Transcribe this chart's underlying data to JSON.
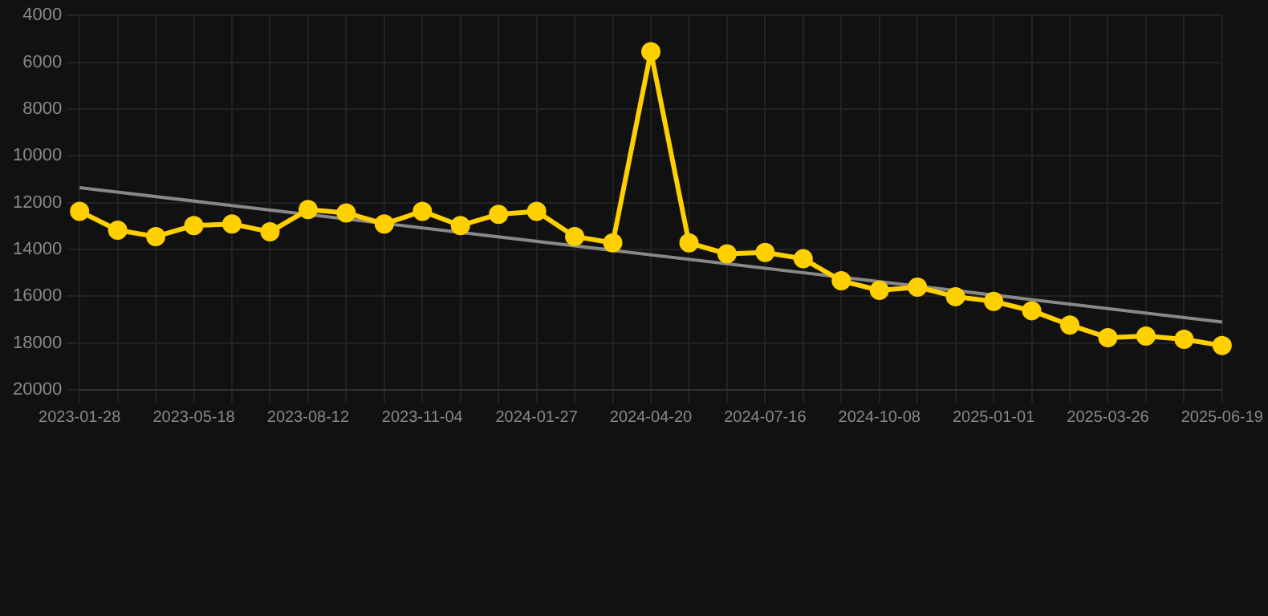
{
  "chart_data": {
    "type": "line",
    "categories": [
      "2023-01-28",
      null,
      null,
      "2023-05-18",
      null,
      null,
      "2023-08-12",
      null,
      null,
      "2023-11-04",
      null,
      null,
      "2024-01-27",
      null,
      null,
      "2024-04-20",
      null,
      null,
      "2024-07-16",
      null,
      null,
      "2024-10-08",
      null,
      null,
      "2025-01-01",
      null,
      null,
      "2025-03-26",
      null,
      null,
      "2025-06-19"
    ],
    "series": [
      {
        "color": "#ffd000",
        "values": [
          12370,
          13180,
          13450,
          12980,
          12910,
          13250,
          12300,
          12440,
          12910,
          12370,
          12980,
          12500,
          12370,
          13450,
          13720,
          5550,
          13720,
          14190,
          14130,
          14400,
          15340,
          15750,
          15610,
          16020,
          16220,
          16620,
          17230,
          17770,
          17700,
          17840,
          18110
        ]
      },
      {
        "color": "#888888",
        "marker": "none",
        "values": [
          11360,
          null,
          null,
          null,
          null,
          null,
          null,
          null,
          null,
          null,
          null,
          null,
          null,
          null,
          null,
          null,
          null,
          null,
          null,
          null,
          null,
          null,
          null,
          null,
          null,
          null,
          null,
          null,
          null,
          null,
          17100
        ]
      }
    ],
    "ylim": [
      20000,
      4000
    ],
    "yticks": [
      4000,
      6000,
      8000,
      10000,
      12000,
      14000,
      16000,
      18000,
      20000
    ],
    "grid": true,
    "marker": "circle",
    "line_style": "solid",
    "legend": false
  }
}
